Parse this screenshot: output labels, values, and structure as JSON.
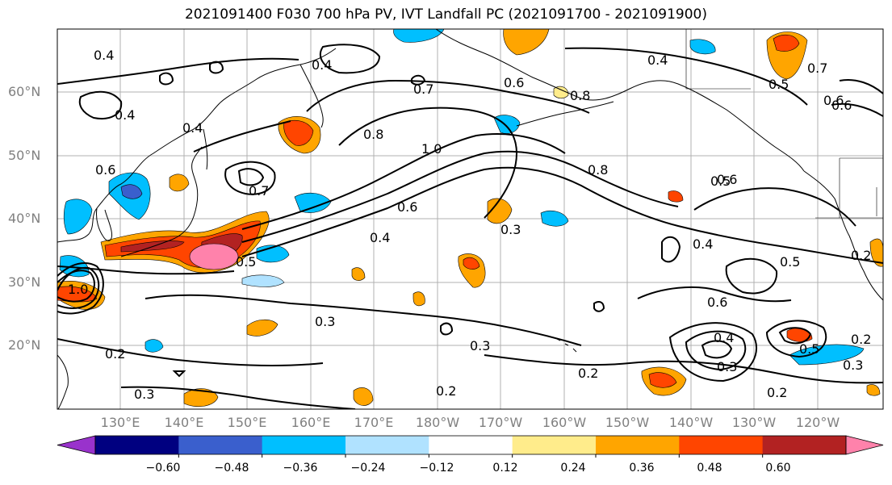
{
  "title": "2021091400 F030 700 hPa PV, IVT Landfall PC (2021091700 - 2021091900)",
  "lat_labels": [
    "60°N",
    "50°N",
    "40°N",
    "30°N",
    "20°N"
  ],
  "lon_labels": [
    "130°E",
    "140°E",
    "150°E",
    "160°E",
    "170°E",
    "180°W",
    "170°W",
    "160°W",
    "150°W",
    "140°W",
    "130°W",
    "120°W"
  ],
  "colorbar": {
    "ticks": [
      "−0.60",
      "−0.48",
      "−0.36",
      "−0.24",
      "−0.12",
      "0.12",
      "0.24",
      "0.36",
      "0.48",
      "0.60"
    ],
    "colors": [
      "#9932CC",
      "#000080",
      "#3A5FCD",
      "#00BFFF",
      "#B0E2FF",
      "#FFFFFF",
      "#FFEC8B",
      "#FFA500",
      "#FF4500",
      "#B22222",
      "#FF82AB"
    ]
  },
  "contour_labels": [
    "0.4",
    "0.4",
    "0.4",
    "0.7",
    "0.6",
    "0.8",
    "0.5",
    "0.7",
    "0.6",
    "0.4",
    "0.8",
    "1.0",
    "0.6",
    "0.8",
    "0.5",
    "0.6",
    "0.7",
    "0.4",
    "0.6",
    "0.3",
    "0.5",
    "0.4",
    "0.5",
    "0.6",
    "0.3",
    "0.3",
    "0.2",
    "0.2",
    "0.2",
    "0.3",
    "0.4",
    "0.3",
    "0.2",
    "0.2",
    "0.2",
    "0.3",
    "1.0",
    "0.4",
    "0.5",
    "0.6"
  ]
}
